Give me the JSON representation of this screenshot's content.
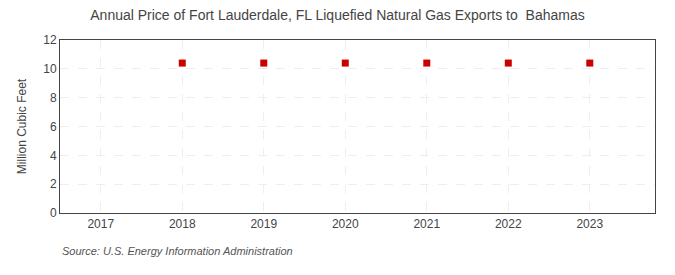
{
  "chart_data": {
    "type": "scatter",
    "title": "Annual Price of Fort Lauderdale, FL Liquefied Natural Gas Exports to  Bahamas",
    "ylabel": "Million Cubic Feet",
    "annotations": [
      "Source: U.S. Energy Information Administration"
    ],
    "x": [
      2018,
      2019,
      2020,
      2021,
      2022,
      2023
    ],
    "values": [
      10.4,
      10.4,
      10.4,
      10.4,
      10.4,
      10.4
    ],
    "color": "#cc0000",
    "marker": "square",
    "xlim": [
      2016.5,
      2023.8
    ],
    "xticks": [
      2017,
      2018,
      2019,
      2020,
      2021,
      2022,
      2023
    ],
    "ylim": [
      0,
      12
    ],
    "yticks": [
      0,
      2,
      4,
      6,
      8,
      10,
      12
    ],
    "grid": true
  }
}
